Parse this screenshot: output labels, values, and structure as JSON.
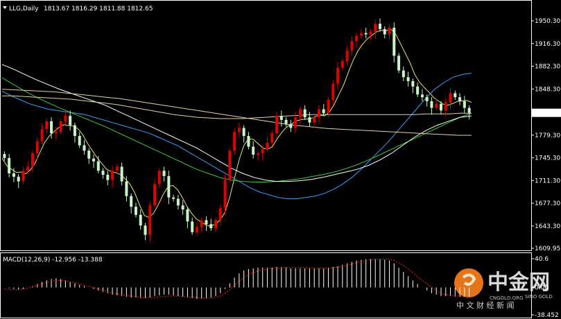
{
  "header": {
    "symbol": "LLG,Daily",
    "ohlc": "1813.67 1816.29 1811.88 1812.65",
    "triangle_icon": "dropdown-triangle-icon"
  },
  "macd_header": "MACD(12,26,9) -12.956 -13.388",
  "current_price": "1812.65",
  "colors": {
    "background": "#000000",
    "frame": "#ffffff",
    "bull_candle": "#e00000",
    "bear_candle": "#c8f5c8",
    "ma_fast": "#e8e86a",
    "ma_mid": "#3aa0ff",
    "ma_green": "#3ec83e",
    "ma_white": "#ffffff",
    "ma_tan": "#e6d2a8",
    "macd_hist": "#ffffff",
    "macd_signal": "#ff2020",
    "price_tag_bg": "#ffffff"
  },
  "watermark": {
    "big": "中金网",
    "small": "中 文 财 经 新 闻",
    "tiny_1": "SINO GOLD",
    "tiny_2": "CNGOLD.ORG",
    "logo_icon": "cngold-logo-icon"
  },
  "chart_data": [
    {
      "type": "candlestick",
      "title": "LLG,Daily",
      "ylim": [
        1609.95,
        1966
      ],
      "y_ticks": [
        "1950.30",
        "1916.30",
        "1882.30",
        "1848.30",
        "1812.65",
        "1779.30",
        "1745.30",
        "1711.30",
        "1677.30",
        "1643.30",
        "1609.95"
      ],
      "y_tick_values": [
        1950.3,
        1916.3,
        1882.3,
        1848.3,
        1812.65,
        1779.3,
        1745.3,
        1711.3,
        1677.3,
        1643.3,
        1609.95
      ],
      "series": [
        {
          "name": "close",
          "values": [
            1745,
            1722,
            1717,
            1710,
            1726,
            1732,
            1752,
            1770,
            1788,
            1800,
            1782,
            1784,
            1800,
            1808,
            1794,
            1778,
            1764,
            1756,
            1744,
            1740,
            1726,
            1720,
            1712,
            1726,
            1732,
            1710,
            1688,
            1672,
            1660,
            1644,
            1630,
            1674,
            1706,
            1726,
            1718,
            1686,
            1684,
            1674,
            1668,
            1650,
            1634,
            1642,
            1652,
            1646,
            1640,
            1652,
            1670,
            1712,
            1756,
            1784,
            1790,
            1778,
            1762,
            1750,
            1752,
            1758,
            1768,
            1782,
            1808,
            1802,
            1796,
            1790,
            1806,
            1818,
            1806,
            1798,
            1806,
            1818,
            1812,
            1832,
            1856,
            1880,
            1890,
            1906,
            1920,
            1928,
            1932,
            1930,
            1934,
            1946,
            1938,
            1930,
            1940,
            1898,
            1876,
            1866,
            1860,
            1852,
            1840,
            1836,
            1830,
            1820,
            1826,
            1816,
            1828,
            1842,
            1836,
            1830,
            1820,
            1812.65
          ]
        },
        {
          "name": "",
          "values": [
            1845,
            1838,
            1832,
            1826,
            1822,
            1818,
            1816,
            1814,
            1812,
            1810,
            1806,
            1802,
            1798,
            1794,
            1790,
            1786,
            1782,
            1776,
            1770,
            1764,
            1756,
            1748,
            1740,
            1732,
            1724,
            1716,
            1708,
            1700,
            1694,
            1690,
            1686,
            1684,
            1684,
            1686,
            1688,
            1692,
            1698,
            1706,
            1716,
            1728,
            1742,
            1756,
            1770,
            1786,
            1802,
            1818,
            1834,
            1848,
            1858,
            1866,
            1870,
            1872
          ]
        },
        {
          "name": "",
          "values": [
            1865,
            1855,
            1845,
            1836,
            1828,
            1820,
            1813,
            1806,
            1799,
            1792,
            1784,
            1776,
            1768,
            1760,
            1752,
            1744,
            1736,
            1728,
            1722,
            1716,
            1712,
            1710,
            1709,
            1709,
            1710,
            1712,
            1714,
            1717,
            1720,
            1724,
            1729,
            1735,
            1742,
            1750,
            1758,
            1766,
            1774,
            1782,
            1790,
            1798,
            1806,
            1812
          ]
        },
        {
          "name": "",
          "values": [
            1885,
            1878,
            1870,
            1862,
            1855,
            1848,
            1842,
            1836,
            1830,
            1824,
            1816,
            1808,
            1800,
            1792,
            1784,
            1776,
            1768,
            1760,
            1750,
            1740,
            1730,
            1722,
            1716,
            1712,
            1710,
            1710,
            1711,
            1713,
            1716,
            1720,
            1724,
            1728,
            1734,
            1742,
            1752,
            1764,
            1776,
            1786,
            1794,
            1800,
            1806,
            1808
          ]
        },
        {
          "name": "",
          "values": [
            1848,
            1847,
            1846,
            1845,
            1844,
            1842,
            1840,
            1838,
            1836,
            1834,
            1831,
            1828,
            1825,
            1822,
            1819,
            1816,
            1813,
            1810,
            1807,
            1804,
            1801,
            1798,
            1795,
            1793,
            1791,
            1789,
            1788,
            1787,
            1786,
            1785,
            1784,
            1783,
            1782,
            1781,
            1780,
            1779,
            1779
          ]
        },
        {
          "name": "",
          "values": [
            1838,
            1838,
            1837,
            1836,
            1835,
            1834,
            1833,
            1831,
            1829,
            1827,
            1825,
            1822,
            1819,
            1816,
            1813,
            1810,
            1808,
            1806,
            1805,
            1804,
            1804,
            1804,
            1805,
            1806,
            1807,
            1808,
            1809,
            1810,
            1810,
            1810,
            1810,
            1810,
            1810,
            1810,
            1810,
            1810,
            1810,
            1811,
            1811,
            1811,
            1812,
            1812
          ]
        }
      ]
    },
    {
      "type": "bar",
      "title": "MACD(12,26,9) -12.956 -13.388",
      "ylim": [
        -38.452,
        40.6
      ],
      "y_ticks": [
        "40.6",
        "0.00",
        "-38.452"
      ],
      "y_tick_values": [
        40.6,
        0,
        -38.452
      ],
      "series": [
        {
          "name": "MACD",
          "values": [
            0,
            -1,
            -2,
            -3,
            -2,
            0,
            2,
            5,
            8,
            10,
            12,
            13,
            12,
            10,
            8,
            6,
            4,
            2,
            0,
            -2,
            -4,
            -6,
            -8,
            -10,
            -11,
            -12,
            -13,
            -14,
            -14,
            -15,
            -15,
            -14,
            -12,
            -11,
            -10,
            -10,
            -11,
            -12,
            -13,
            -14,
            -15,
            -16,
            -16,
            -15,
            -14,
            -12,
            -8,
            -2,
            6,
            14,
            20,
            24,
            26,
            27,
            28,
            28,
            28,
            28,
            29,
            29,
            28,
            27,
            27,
            27,
            27,
            27,
            27,
            27,
            27,
            28,
            29,
            30,
            32,
            34,
            36,
            38,
            39,
            40,
            40,
            40,
            40,
            39,
            38,
            34,
            28,
            22,
            16,
            10,
            5,
            0,
            -4,
            -8,
            -10,
            -12,
            -12,
            -12,
            -13,
            -13,
            -13,
            -13
          ]
        },
        {
          "name": "Signal",
          "values": [
            -2,
            -3,
            -3,
            -3,
            -2,
            -1,
            1,
            3,
            5,
            7,
            9,
            10,
            10,
            9,
            8,
            7,
            5,
            3,
            2,
            0,
            -2,
            -4,
            -6,
            -8,
            -9,
            -10,
            -11,
            -12,
            -13,
            -14,
            -14,
            -14,
            -14,
            -13,
            -13,
            -12,
            -12,
            -12,
            -13,
            -13,
            -14,
            -14,
            -15,
            -15,
            -15,
            -14,
            -12,
            -8,
            -3,
            3,
            9,
            14,
            18,
            21,
            23,
            25,
            26,
            27,
            27,
            28,
            28,
            28,
            28,
            28,
            28,
            27,
            27,
            27,
            27,
            27,
            28,
            29,
            30,
            31,
            33,
            35,
            36,
            38,
            39,
            40,
            40,
            40,
            40,
            38,
            35,
            31,
            26,
            21,
            15,
            10,
            5,
            0,
            -4,
            -8,
            -10,
            -11,
            -12,
            -12,
            -13,
            -13.4
          ]
        }
      ]
    }
  ]
}
